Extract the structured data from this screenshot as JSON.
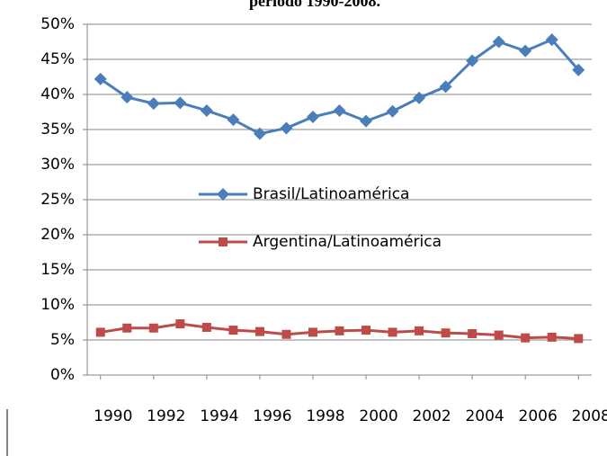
{
  "chart_data": {
    "type": "line",
    "title": "período 1990-2008.",
    "x": [
      1990,
      1991,
      1992,
      1993,
      1994,
      1995,
      1996,
      1997,
      1998,
      1999,
      2000,
      2001,
      2002,
      2003,
      2004,
      2005,
      2006,
      2007,
      2008
    ],
    "xlim": [
      1989.5,
      2008.5
    ],
    "xticks": [
      1990,
      1992,
      1994,
      1996,
      1998,
      2000,
      2002,
      2004,
      2006,
      2008
    ],
    "ylim": [
      0,
      50
    ],
    "yticks": [
      {
        "value": 0,
        "label": "0%"
      },
      {
        "value": 5,
        "label": "5%"
      },
      {
        "value": 10,
        "label": "10%"
      },
      {
        "value": 15,
        "label": "15%"
      },
      {
        "value": 20,
        "label": "20%"
      },
      {
        "value": 25,
        "label": "25%"
      },
      {
        "value": 30,
        "label": "30%"
      },
      {
        "value": 35,
        "label": "35%"
      },
      {
        "value": 40,
        "label": "40%"
      },
      {
        "value": 45,
        "label": "45%"
      },
      {
        "value": 50,
        "label": "50%"
      }
    ],
    "grid": true,
    "series": [
      {
        "name": "Brasil/Latinoamérica",
        "color": "#4a7ebb",
        "marker": "diamond",
        "values": [
          42.2,
          39.6,
          38.7,
          38.8,
          37.7,
          36.4,
          34.4,
          35.2,
          36.8,
          37.7,
          36.2,
          37.6,
          39.5,
          41.1,
          44.8,
          47.5,
          46.2,
          47.8,
          43.5
        ]
      },
      {
        "name": "Argentina/Latinoamérica",
        "color": "#be4b48",
        "marker": "square",
        "values": [
          6.1,
          6.7,
          6.7,
          7.3,
          6.8,
          6.4,
          6.2,
          5.8,
          6.1,
          6.3,
          6.4,
          6.1,
          6.3,
          6.0,
          5.9,
          5.7,
          5.3,
          5.4,
          5.2
        ]
      }
    ]
  }
}
